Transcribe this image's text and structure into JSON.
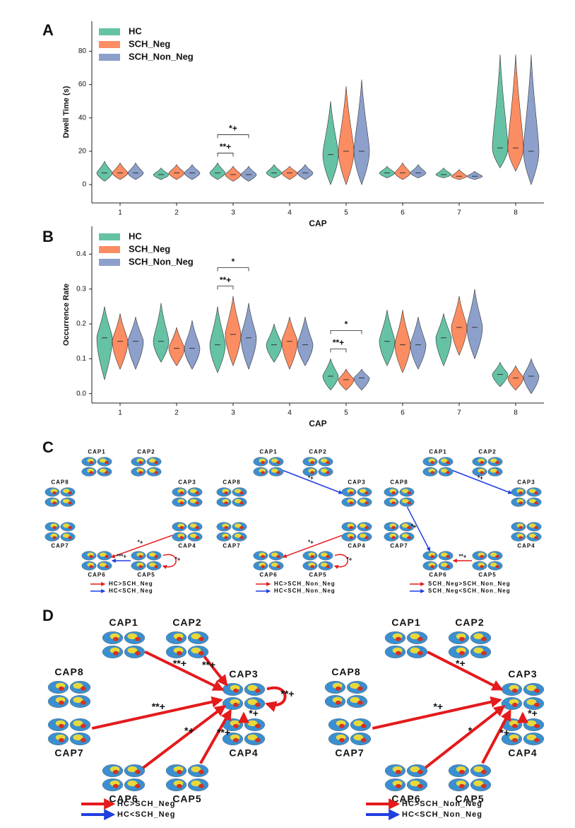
{
  "panel_labels": [
    "A",
    "B",
    "C",
    "D"
  ],
  "chart_data": [
    {
      "type": "violin",
      "ylabel": "Dwell Time (s)",
      "xlabel": "CAP",
      "categories": [
        "1",
        "2",
        "3",
        "4",
        "5",
        "6",
        "7",
        "8"
      ],
      "ylim": [
        -11,
        98
      ],
      "yticks": [
        0,
        20,
        40,
        60,
        80
      ],
      "legend": "top-left",
      "series": [
        {
          "name": "HC",
          "color": "#66c2a5",
          "min": [
            2,
            3,
            3,
            4,
            0,
            4,
            4,
            10
          ],
          "max": [
            14,
            10,
            13,
            12,
            50,
            11,
            10,
            78
          ],
          "median": [
            7,
            6,
            7,
            7,
            18,
            7,
            6,
            22
          ]
        },
        {
          "name": "SCH_Neg",
          "color": "#fc8d62",
          "min": [
            3,
            3,
            2,
            3,
            0,
            3,
            3,
            8
          ],
          "max": [
            13,
            12,
            11,
            11,
            59,
            13,
            9,
            78
          ],
          "median": [
            7,
            7,
            6,
            7,
            20,
            7,
            5,
            22
          ]
        },
        {
          "name": "SCH_Non_Neg",
          "color": "#8da0cb",
          "min": [
            3,
            3,
            2,
            3,
            0,
            4,
            3,
            0
          ],
          "max": [
            13,
            12,
            11,
            12,
            63,
            12,
            8,
            78
          ],
          "median": [
            7,
            7,
            6,
            7,
            20,
            7,
            5,
            20
          ]
        }
      ],
      "annotations": [
        {
          "text": "**+",
          "category": "3"
        },
        {
          "text": "*+",
          "category": "3"
        }
      ]
    },
    {
      "type": "violin",
      "ylabel": "Occurrence Rate",
      "xlabel": "CAP",
      "categories": [
        "1",
        "2",
        "3",
        "4",
        "5",
        "6",
        "7",
        "8"
      ],
      "ylim": [
        -0.027,
        0.48
      ],
      "yticks": [
        {
          "value": 0,
          "label": "0.0"
        },
        0.1,
        0.2,
        0.3,
        0.4
      ],
      "legend": "top-left",
      "series": [
        {
          "name": "HC",
          "color": "#66c2a5",
          "min": [
            0.04,
            0.09,
            0.06,
            0.09,
            0.01,
            0.08,
            0.08,
            0.02
          ],
          "max": [
            0.25,
            0.26,
            0.25,
            0.2,
            0.1,
            0.24,
            0.23,
            0.09
          ],
          "median": [
            0.16,
            0.15,
            0.14,
            0.14,
            0.05,
            0.15,
            0.16,
            0.055
          ]
        },
        {
          "name": "SCH_Neg",
          "color": "#fc8d62",
          "min": [
            0.07,
            0.08,
            0.08,
            0.07,
            0.01,
            0.06,
            0.11,
            0.01
          ],
          "max": [
            0.23,
            0.19,
            0.28,
            0.22,
            0.07,
            0.24,
            0.28,
            0.08
          ],
          "median": [
            0.15,
            0.13,
            0.17,
            0.15,
            0.04,
            0.14,
            0.19,
            0.045
          ]
        },
        {
          "name": "SCH_Non_Neg",
          "color": "#8da0cb",
          "min": [
            0.07,
            0.07,
            0.07,
            0.08,
            0.01,
            0.07,
            0.1,
            0
          ],
          "max": [
            0.22,
            0.21,
            0.26,
            0.22,
            0.07,
            0.22,
            0.3,
            0.1
          ],
          "median": [
            0.15,
            0.13,
            0.16,
            0.14,
            0.045,
            0.14,
            0.19,
            0.05
          ]
        }
      ],
      "annotations": [
        {
          "text": "**+",
          "category": "3"
        },
        {
          "text": "*",
          "category": "3"
        },
        {
          "text": "**+",
          "category": "5"
        },
        {
          "text": "*",
          "category": "5"
        }
      ]
    }
  ],
  "diagrams": {
    "C": [
      {
        "nodes": [
          "CAP1",
          "CAP2",
          "CAP3",
          "CAP4",
          "CAP5",
          "CAP6",
          "CAP7",
          "CAP8"
        ],
        "edges": [
          {
            "from": 3,
            "to": 5,
            "label": "*+",
            "color": "#e41a1c"
          },
          {
            "from": 4,
            "to": 5,
            "label": "***+",
            "color": "#1f3fe0"
          },
          {
            "from": 4,
            "to": 4,
            "label": "*+",
            "color": "#e41a1c"
          }
        ],
        "legend": [
          {
            "text": "HC>SCH_Neg",
            "color": "#e41a1c"
          },
          {
            "text": "HC<SCH_Neg",
            "color": "#1f3fe0"
          }
        ]
      },
      {
        "nodes": [
          "CAP1",
          "CAP2",
          "CAP3",
          "CAP4",
          "CAP5",
          "CAP6",
          "CAP7",
          "CAP8"
        ],
        "edges": [
          {
            "from": 0,
            "to": 2,
            "label": "*+",
            "color": "#1f3fe0"
          },
          {
            "from": 3,
            "to": 5,
            "label": "*+",
            "color": "#e41a1c"
          },
          {
            "from": 4,
            "to": 4,
            "label": "*+",
            "color": "#e41a1c"
          }
        ],
        "legend": [
          {
            "text": "HC>SCH_Non_Neg",
            "color": "#e41a1c"
          },
          {
            "text": "HC<SCH_Non_Neg",
            "color": "#1f3fe0"
          }
        ]
      },
      {
        "nodes": [
          "CAP1",
          "CAP2",
          "CAP3",
          "CAP4",
          "CAP5",
          "CAP6",
          "CAP7",
          "CAP8"
        ],
        "edges": [
          {
            "from": 0,
            "to": 2,
            "label": "*+",
            "color": "#1f3fe0"
          },
          {
            "from": 7,
            "to": 5,
            "label": "*+",
            "color": "#1f3fe0"
          },
          {
            "from": 4,
            "to": 5,
            "label": "**+",
            "color": "#e41a1c"
          }
        ],
        "legend": [
          {
            "text": "SCH_Neg>SCH_Non_Neg",
            "color": "#e41a1c"
          },
          {
            "text": "SCH_Neg<SCH_Non_Neg",
            "color": "#1f3fe0"
          }
        ]
      }
    ],
    "D": [
      {
        "nodes": [
          "CAP1",
          "CAP2",
          "CAP3",
          "CAP4",
          "CAP5",
          "CAP6",
          "CAP7",
          "CAP8"
        ],
        "edges": [
          {
            "from": 0,
            "to": 2,
            "label": "**+",
            "color": "#e41a1c"
          },
          {
            "from": 1,
            "to": 2,
            "label": "**+",
            "color": "#e41a1c"
          },
          {
            "from": 2,
            "to": 2,
            "label": "**+",
            "color": "#e41a1c"
          },
          {
            "from": 3,
            "to": 2,
            "label": "*+",
            "color": "#e41a1c"
          },
          {
            "from": 4,
            "to": 2,
            "label": "**+",
            "color": "#e41a1c"
          },
          {
            "from": 5,
            "to": 2,
            "label": "*+",
            "color": "#e41a1c"
          },
          {
            "from": 6,
            "to": 2,
            "label": "**+",
            "color": "#e41a1c"
          }
        ],
        "legend": [
          {
            "text": "HC>SCH_Neg",
            "color": "#e41a1c"
          },
          {
            "text": "HC<SCH_Neg",
            "color": "#1f3fe0"
          }
        ]
      },
      {
        "nodes": [
          "CAP1",
          "CAP2",
          "CAP3",
          "CAP4",
          "CAP5",
          "CAP6",
          "CAP7",
          "CAP8"
        ],
        "edges": [
          {
            "from": 0,
            "to": 2,
            "label": "*+",
            "color": "#e41a1c"
          },
          {
            "from": 6,
            "to": 2,
            "label": "*+",
            "color": "#e41a1c"
          },
          {
            "from": 5,
            "to": 2,
            "label": "*",
            "color": "#e41a1c"
          },
          {
            "from": 4,
            "to": 2,
            "label": "*+",
            "color": "#e41a1c"
          },
          {
            "from": 3,
            "to": 2,
            "label": "*+",
            "color": "#e41a1c"
          }
        ],
        "legend": [
          {
            "text": "HC>SCH_Non_Neg",
            "color": "#e41a1c"
          },
          {
            "text": "HC<SCH_Non_Neg",
            "color": "#1f3fe0"
          }
        ]
      }
    ]
  }
}
